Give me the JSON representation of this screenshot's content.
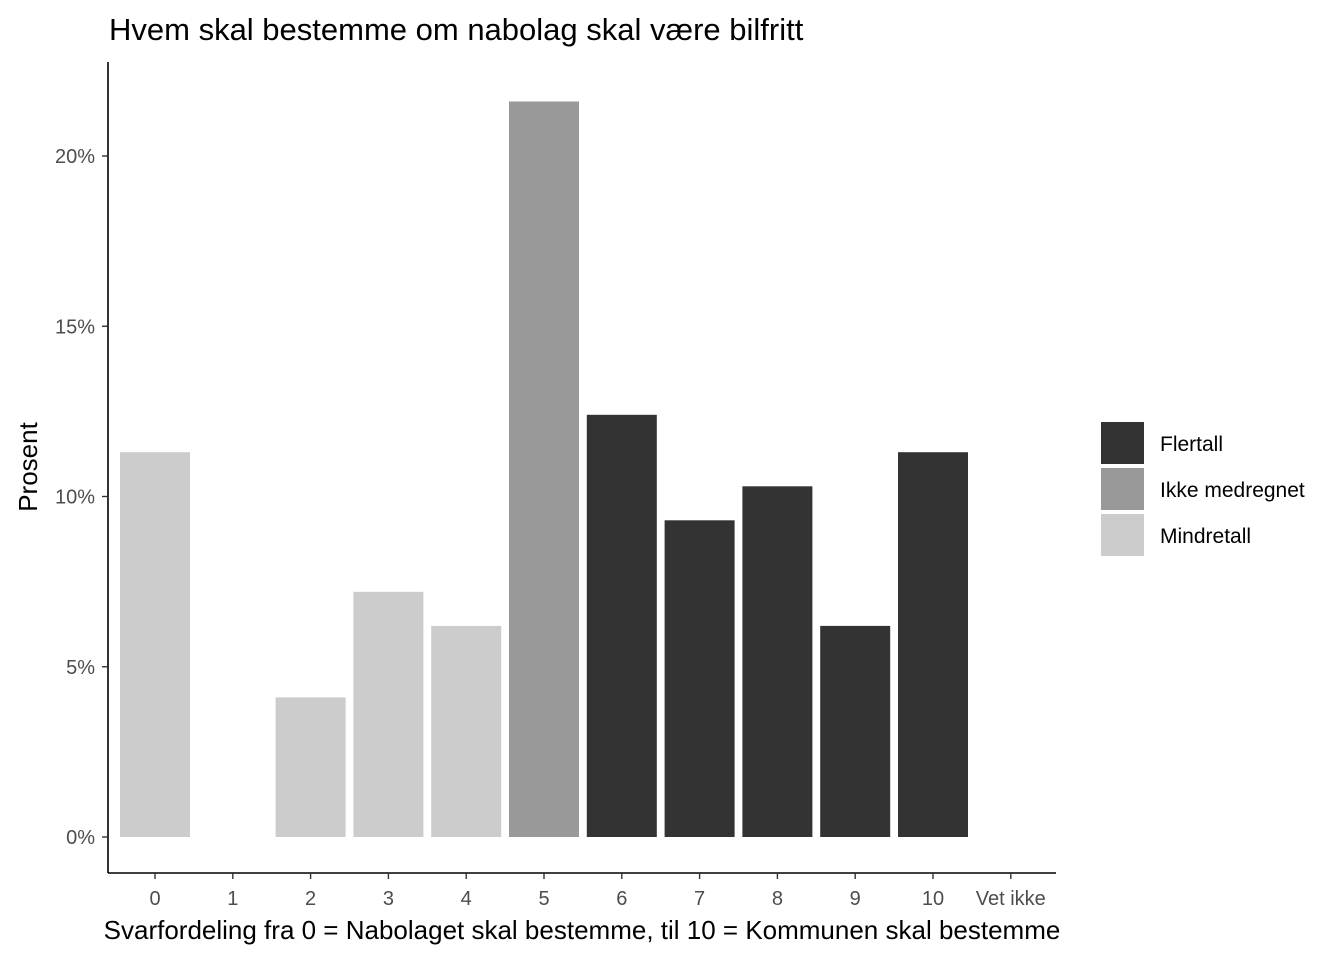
{
  "chart_data": {
    "type": "bar",
    "title": "Hvem skal bestemme om nabolag skal være bilfritt",
    "xlabel": "Svarfordeling fra 0 = Nabolaget skal bestemme, til 10 = Kommunen skal bestemme",
    "ylabel": "Prosent",
    "categories": [
      "0",
      "1",
      "2",
      "3",
      "4",
      "5",
      "6",
      "7",
      "8",
      "9",
      "10",
      "Vet ikke"
    ],
    "values": [
      11.3,
      0,
      4.1,
      7.2,
      6.2,
      21.6,
      12.4,
      9.3,
      10.3,
      6.2,
      11.3,
      0
    ],
    "groups": [
      "Mindretall",
      "Mindretall",
      "Mindretall",
      "Mindretall",
      "Mindretall",
      "Ikke medregnet",
      "Flertall",
      "Flertall",
      "Flertall",
      "Flertall",
      "Flertall",
      "Ikke medregnet"
    ],
    "ylim": [
      0,
      22.3
    ],
    "yticks": [
      0,
      5,
      10,
      15,
      20
    ],
    "ytick_labels": [
      "0%",
      "5%",
      "10%",
      "15%",
      "20%"
    ],
    "grid": false,
    "legend": {
      "placement": "right",
      "items": [
        {
          "name": "Flertall",
          "color": "#333333"
        },
        {
          "name": "Ikke medregnet",
          "color": "#999999"
        },
        {
          "name": "Mindretall",
          "color": "#cccccc"
        }
      ]
    }
  }
}
